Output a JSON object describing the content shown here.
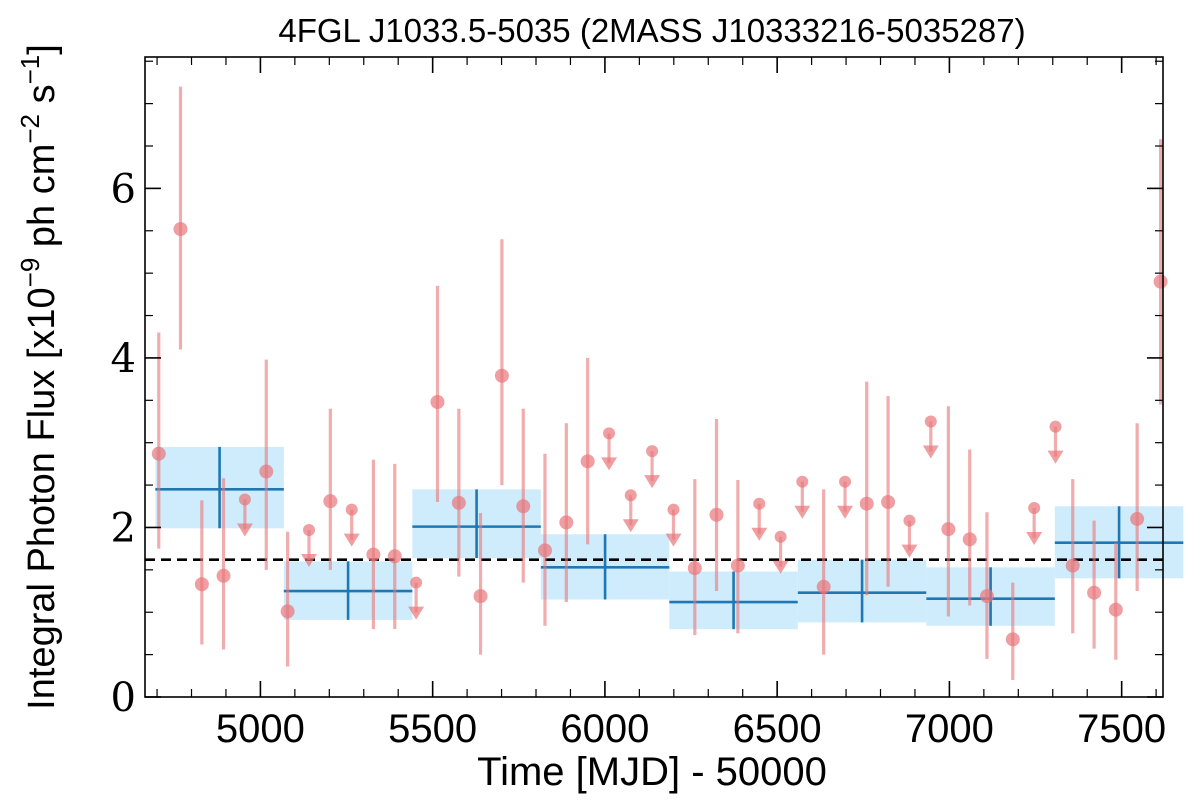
{
  "chart_data": {
    "type": "scatter",
    "title": "4FGL J1033.5-5035 (2MASS J10333216-5035287)",
    "xlabel": "Time [MJD] - 50000",
    "ylabel_parts": {
      "prefix": "Integral Photon Flux [x10",
      "exp1": "−9",
      "mid": " ph cm",
      "exp2": "−2",
      "mid2": " s",
      "exp3": "−1",
      "suffix": "]"
    },
    "xlim": [
      4665,
      7620
    ],
    "ylim": [
      0,
      7.55
    ],
    "xticks": [
      5000,
      5500,
      6000,
      6500,
      7000,
      7500
    ],
    "xtick_labels": [
      "5000",
      "5500",
      "6000",
      "6500",
      "7000",
      "7500"
    ],
    "yticks": [
      0,
      2,
      4,
      6
    ],
    "ytick_labels": [
      "0",
      "2",
      "4",
      "6"
    ],
    "mean_flux": 1.62,
    "colors": {
      "points": "#e8767a",
      "bins_fill": "#bfe6fb",
      "bins_line": "#1f77b4",
      "mean_line": "#000000"
    },
    "detections": [
      {
        "x": 4705,
        "y": 2.87,
        "ylo": 1.75,
        "yhi": 4.3
      },
      {
        "x": 4768,
        "y": 5.52,
        "ylo": 4.1,
        "yhi": 7.2
      },
      {
        "x": 4830,
        "y": 1.33,
        "ylo": 0.62,
        "yhi": 2.32
      },
      {
        "x": 4893,
        "y": 1.43,
        "ylo": 0.56,
        "yhi": 2.58
      },
      {
        "x": 5017,
        "y": 2.66,
        "ylo": 1.5,
        "yhi": 3.98
      },
      {
        "x": 5079,
        "y": 1.01,
        "ylo": 0.36,
        "yhi": 1.95
      },
      {
        "x": 5203,
        "y": 2.31,
        "ylo": 1.5,
        "yhi": 3.4
      },
      {
        "x": 5328,
        "y": 1.68,
        "ylo": 0.8,
        "yhi": 2.8
      },
      {
        "x": 5390,
        "y": 1.66,
        "ylo": 0.8,
        "yhi": 2.75
      },
      {
        "x": 5514,
        "y": 3.48,
        "ylo": 2.3,
        "yhi": 4.85
      },
      {
        "x": 5576,
        "y": 2.29,
        "ylo": 1.42,
        "yhi": 3.4
      },
      {
        "x": 5639,
        "y": 1.19,
        "ylo": 0.5,
        "yhi": 2.17
      },
      {
        "x": 5701,
        "y": 3.79,
        "ylo": 2.5,
        "yhi": 5.4
      },
      {
        "x": 5763,
        "y": 2.25,
        "ylo": 1.35,
        "yhi": 3.4
      },
      {
        "x": 5826,
        "y": 1.73,
        "ylo": 0.84,
        "yhi": 2.87
      },
      {
        "x": 5888,
        "y": 2.06,
        "ylo": 1.12,
        "yhi": 3.23
      },
      {
        "x": 5950,
        "y": 2.78,
        "ylo": 1.8,
        "yhi": 4.0
      },
      {
        "x": 6261,
        "y": 1.52,
        "ylo": 0.73,
        "yhi": 2.57
      },
      {
        "x": 6324,
        "y": 2.15,
        "ylo": 1.25,
        "yhi": 3.28
      },
      {
        "x": 6386,
        "y": 1.55,
        "ylo": 0.75,
        "yhi": 2.56
      },
      {
        "x": 6635,
        "y": 1.3,
        "ylo": 0.5,
        "yhi": 2.45
      },
      {
        "x": 6760,
        "y": 2.28,
        "ylo": 1.2,
        "yhi": 3.72
      },
      {
        "x": 6822,
        "y": 2.3,
        "ylo": 1.3,
        "yhi": 3.55
      },
      {
        "x": 6997,
        "y": 1.98,
        "ylo": 0.95,
        "yhi": 3.43
      },
      {
        "x": 7059,
        "y": 1.86,
        "ylo": 1.08,
        "yhi": 2.92
      },
      {
        "x": 7109,
        "y": 1.19,
        "ylo": 0.45,
        "yhi": 2.18
      },
      {
        "x": 7184,
        "y": 0.68,
        "ylo": 0.2,
        "yhi": 1.35
      },
      {
        "x": 7358,
        "y": 1.55,
        "ylo": 0.75,
        "yhi": 2.57
      },
      {
        "x": 7420,
        "y": 1.23,
        "ylo": 0.57,
        "yhi": 2.08
      },
      {
        "x": 7483,
        "y": 1.03,
        "ylo": 0.44,
        "yhi": 1.82
      },
      {
        "x": 7545,
        "y": 2.1,
        "ylo": 1.25,
        "yhi": 3.23
      },
      {
        "x": 7613,
        "y": 4.9,
        "ylo": 3.45,
        "yhi": 6.58
      }
    ],
    "upper_limits": [
      {
        "x": 4955,
        "y": 2.33
      },
      {
        "x": 5141,
        "y": 1.97
      },
      {
        "x": 5265,
        "y": 2.21
      },
      {
        "x": 5452,
        "y": 1.35
      },
      {
        "x": 6012,
        "y": 3.11
      },
      {
        "x": 6075,
        "y": 2.38
      },
      {
        "x": 6137,
        "y": 2.9
      },
      {
        "x": 6199,
        "y": 2.21
      },
      {
        "x": 6448,
        "y": 2.28
      },
      {
        "x": 6510,
        "y": 1.89
      },
      {
        "x": 6573,
        "y": 2.54
      },
      {
        "x": 6697,
        "y": 2.54
      },
      {
        "x": 6884,
        "y": 2.08
      },
      {
        "x": 6946,
        "y": 3.25
      },
      {
        "x": 7246,
        "y": 2.23
      },
      {
        "x": 7308,
        "y": 3.19
      }
    ],
    "bins": [
      {
        "x0": 4695,
        "x1": 5068,
        "y": 2.45,
        "ylo": 1.99,
        "yhi": 2.95
      },
      {
        "x0": 5068,
        "x1": 5441,
        "y": 1.25,
        "ylo": 0.91,
        "yhi": 1.6
      },
      {
        "x0": 5441,
        "x1": 5814,
        "y": 2.01,
        "ylo": 1.64,
        "yhi": 2.45
      },
      {
        "x0": 5814,
        "x1": 6187,
        "y": 1.53,
        "ylo": 1.15,
        "yhi": 1.92
      },
      {
        "x0": 6187,
        "x1": 6560,
        "y": 1.12,
        "ylo": 0.8,
        "yhi": 1.48
      },
      {
        "x0": 6560,
        "x1": 6933,
        "y": 1.23,
        "ylo": 0.88,
        "yhi": 1.62
      },
      {
        "x0": 6933,
        "x1": 7306,
        "y": 1.16,
        "ylo": 0.84,
        "yhi": 1.53
      },
      {
        "x0": 7306,
        "x1": 7679,
        "y": 1.82,
        "ylo": 1.4,
        "yhi": 2.25
      }
    ]
  }
}
